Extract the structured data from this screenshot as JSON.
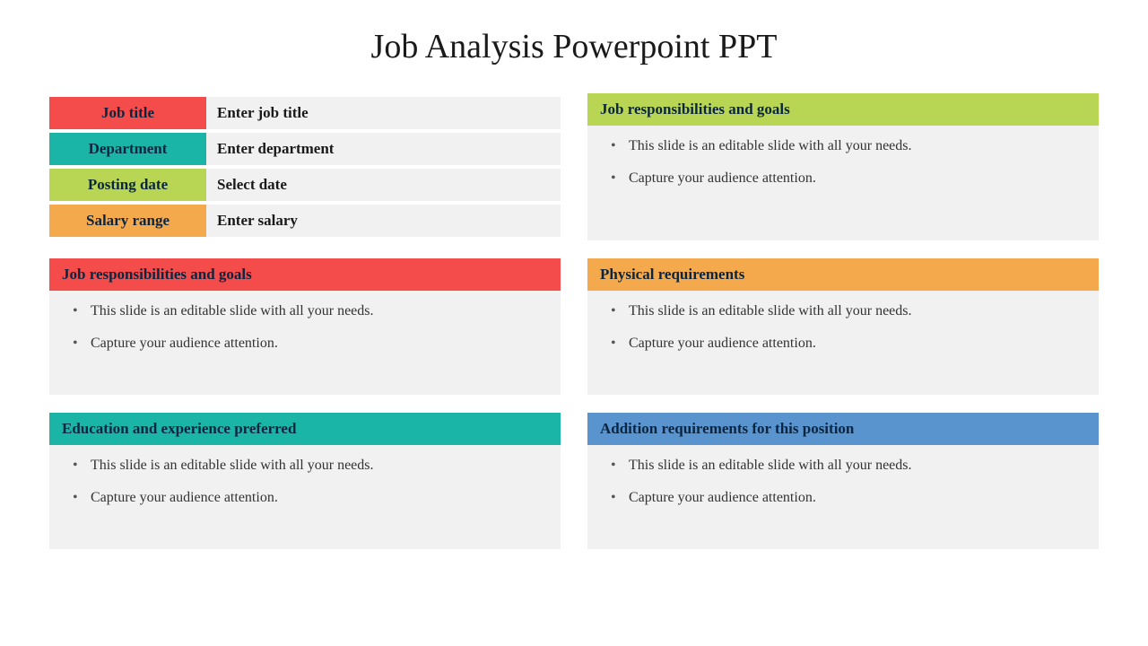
{
  "title": "Job Analysis Powerpoint PPT",
  "colors": {
    "red": "#f44b4b",
    "teal": "#1bb5a8",
    "lime": "#b8d553",
    "orange": "#f5a94d",
    "blue": "#5a94ce",
    "lightgray": "#f1f1f1",
    "headerText": "#0a2540"
  },
  "infoRows": [
    {
      "label": "Job title",
      "value": "Enter job title",
      "colorKey": "red"
    },
    {
      "label": "Department",
      "value": "Enter department",
      "colorKey": "teal"
    },
    {
      "label": "Posting date",
      "value": "Select date",
      "colorKey": "lime"
    },
    {
      "label": "Salary range",
      "value": "Enter salary",
      "colorKey": "orange"
    }
  ],
  "cards": {
    "topRight": {
      "title": "Job responsibilities and goals",
      "colorKey": "lime",
      "bullets": [
        "This slide is an editable slide with all your needs.",
        "Capture your audience attention."
      ]
    },
    "midLeft": {
      "title": "Job responsibilities and goals",
      "colorKey": "red",
      "bullets": [
        "This slide is an editable slide with all your needs.",
        "Capture your audience attention."
      ]
    },
    "midRight": {
      "title": "Physical requirements",
      "colorKey": "orange",
      "bullets": [
        "This slide is an editable slide with all your needs.",
        "Capture your audience attention."
      ]
    },
    "botLeft": {
      "title": "Education and experience preferred",
      "colorKey": "teal",
      "bullets": [
        "This slide is an editable slide with all your needs.",
        "Capture your audience attention."
      ]
    },
    "botRight": {
      "title": "Addition requirements for this position",
      "colorKey": "blue",
      "bullets": [
        "This slide is an editable slide with all your needs.",
        "Capture your audience attention."
      ]
    }
  }
}
